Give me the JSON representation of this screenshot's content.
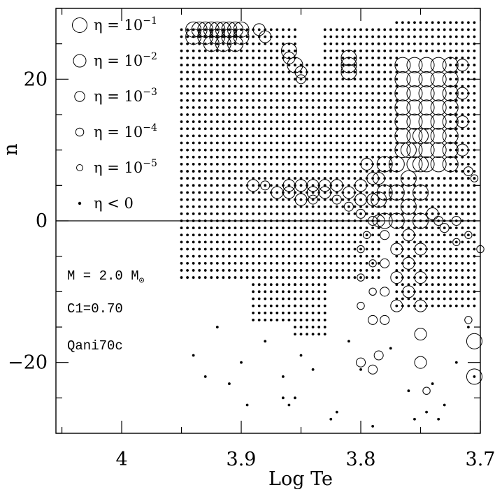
{
  "chart_data": {
    "type": "scatter",
    "xlabel": "Log Te",
    "ylabel": "n",
    "xlim": [
      4.055,
      3.7
    ],
    "ylim": [
      -30,
      30
    ],
    "x_ticks": [
      4.0,
      3.9,
      3.8,
      3.7
    ],
    "x_tick_labels": [
      "4",
      "3.9",
      "3.8",
      "3.7"
    ],
    "y_ticks": [
      -20,
      0,
      20
    ],
    "y_tick_labels": [
      "−20",
      "0",
      "20"
    ],
    "grid": false,
    "zero_line": true,
    "legend": {
      "placement": "top-left",
      "entries": [
        {
          "label_prefix": "η = 10",
          "exponent": "−1",
          "symbol": "open-circle",
          "size_rank": 5
        },
        {
          "label_prefix": "η = 10",
          "exponent": "−2",
          "symbol": "open-circle",
          "size_rank": 4
        },
        {
          "label_prefix": "η = 10",
          "exponent": "−3",
          "symbol": "open-circle",
          "size_rank": 3
        },
        {
          "label_prefix": "η = 10",
          "exponent": "−4",
          "symbol": "open-circle",
          "size_rank": 2
        },
        {
          "label_prefix": "η = 10",
          "exponent": "−5",
          "symbol": "open-circle",
          "size_rank": 1
        },
        {
          "label_prefix": "η < 0",
          "exponent": "",
          "symbol": "filled-dot",
          "size_rank": 0
        }
      ]
    },
    "annotations": [
      "M = 2.0 M",
      "C1=0.70",
      "Qani70c"
    ],
    "annotation_subscript": "⊙",
    "series": [
      {
        "name": "η < 0",
        "symbol": "filled-dot",
        "regions": [
          {
            "x_from": 3.95,
            "x_to": 3.895,
            "n_from": -8,
            "n_to": 27
          },
          {
            "x_from": 3.89,
            "x_to": 3.855,
            "n_from": -14,
            "n_to": 27
          },
          {
            "x_from": 3.855,
            "x_to": 3.83,
            "n_from": -16,
            "n_to": 22
          },
          {
            "x_from": 3.83,
            "x_to": 3.785,
            "n_from": -8,
            "n_to": 27
          },
          {
            "x_from": 3.785,
            "x_to": 3.77,
            "n_from": 1,
            "n_to": 27
          },
          {
            "x_from": 3.77,
            "x_to": 3.73,
            "n_from": 24,
            "n_to": 28
          },
          {
            "x_from": 3.77,
            "x_to": 3.705,
            "n_from": -12,
            "n_to": 6
          },
          {
            "x_from": 3.725,
            "x_to": 3.705,
            "n_from": 1,
            "n_to": 28
          }
        ],
        "scatter": [
          [
            3.94,
            -19
          ],
          [
            3.93,
            -22
          ],
          [
            3.92,
            -15
          ],
          [
            3.91,
            -23
          ],
          [
            3.9,
            -20
          ],
          [
            3.88,
            -17
          ],
          [
            3.865,
            -22
          ],
          [
            3.865,
            -25
          ],
          [
            3.86,
            -26
          ],
          [
            3.855,
            -25
          ],
          [
            3.85,
            -19
          ],
          [
            3.84,
            -21
          ],
          [
            3.825,
            -28
          ],
          [
            3.82,
            -27
          ],
          [
            3.81,
            -17
          ],
          [
            3.8,
            -21
          ],
          [
            3.79,
            -29
          ],
          [
            3.775,
            -18
          ],
          [
            3.76,
            -24
          ],
          [
            3.745,
            -27
          ],
          [
            3.74,
            -23
          ],
          [
            3.73,
            -26
          ],
          [
            3.72,
            -20
          ],
          [
            3.71,
            -15
          ],
          [
            3.705,
            -22
          ],
          [
            3.755,
            -28
          ],
          [
            3.735,
            -28
          ],
          [
            3.895,
            -26
          ]
        ]
      },
      {
        "name": "η > 0",
        "symbol": "open-circle",
        "points": [
          [
            3.94,
            27,
            -1
          ],
          [
            3.935,
            27,
            -1
          ],
          [
            3.93,
            27,
            -1
          ],
          [
            3.925,
            27,
            -1
          ],
          [
            3.92,
            27,
            -1
          ],
          [
            3.915,
            27,
            -1
          ],
          [
            3.91,
            27,
            -1
          ],
          [
            3.905,
            27,
            -1
          ],
          [
            3.9,
            27,
            -1
          ],
          [
            3.94,
            26,
            -1
          ],
          [
            3.93,
            26,
            -1
          ],
          [
            3.92,
            26,
            -1
          ],
          [
            3.91,
            26,
            -1
          ],
          [
            3.9,
            26,
            -1
          ],
          [
            3.925,
            25,
            -1
          ],
          [
            3.915,
            25,
            -1
          ],
          [
            3.905,
            25,
            -1
          ],
          [
            3.885,
            27,
            -2
          ],
          [
            3.88,
            26,
            -2
          ],
          [
            3.86,
            24,
            -1
          ],
          [
            3.86,
            23,
            -2
          ],
          [
            3.855,
            22,
            -1
          ],
          [
            3.85,
            21,
            -2
          ],
          [
            3.85,
            20,
            -3
          ],
          [
            3.81,
            23,
            -1
          ],
          [
            3.81,
            22,
            -1
          ],
          [
            3.81,
            21,
            -1
          ],
          [
            3.765,
            22,
            -1
          ],
          [
            3.765,
            20,
            -1
          ],
          [
            3.765,
            18,
            -1
          ],
          [
            3.765,
            16,
            -1
          ],
          [
            3.765,
            14,
            -1
          ],
          [
            3.765,
            12,
            -1
          ],
          [
            3.765,
            10,
            -1
          ],
          [
            3.755,
            22,
            -1
          ],
          [
            3.755,
            20,
            -1
          ],
          [
            3.755,
            18,
            -1
          ],
          [
            3.755,
            16,
            -1
          ],
          [
            3.755,
            14,
            -1
          ],
          [
            3.755,
            12,
            -1
          ],
          [
            3.755,
            10,
            -1
          ],
          [
            3.755,
            8,
            -1
          ],
          [
            3.745,
            22,
            -1
          ],
          [
            3.745,
            20,
            -1
          ],
          [
            3.745,
            18,
            -1
          ],
          [
            3.745,
            16,
            -1
          ],
          [
            3.745,
            14,
            -1
          ],
          [
            3.745,
            12,
            -1
          ],
          [
            3.745,
            10,
            -1
          ],
          [
            3.745,
            8,
            -1
          ],
          [
            3.735,
            22,
            -1
          ],
          [
            3.735,
            20,
            -1
          ],
          [
            3.735,
            18,
            -1
          ],
          [
            3.735,
            16,
            -1
          ],
          [
            3.735,
            14,
            -1
          ],
          [
            3.735,
            12,
            -1
          ],
          [
            3.735,
            10,
            -1
          ],
          [
            3.735,
            8,
            -1
          ],
          [
            3.725,
            22,
            -1
          ],
          [
            3.725,
            20,
            -1
          ],
          [
            3.725,
            18,
            -1
          ],
          [
            3.725,
            16,
            -1
          ],
          [
            3.725,
            14,
            -1
          ],
          [
            3.725,
            12,
            -1
          ],
          [
            3.725,
            10,
            -1
          ],
          [
            3.725,
            8,
            -1
          ],
          [
            3.715,
            22,
            -2
          ],
          [
            3.715,
            18,
            -2
          ],
          [
            3.715,
            14,
            -2
          ],
          [
            3.715,
            10,
            -2
          ],
          [
            3.71,
            7,
            -3
          ],
          [
            3.705,
            6,
            -4
          ],
          [
            3.89,
            5,
            -2
          ],
          [
            3.88,
            5,
            -3
          ],
          [
            3.87,
            4,
            -2
          ],
          [
            3.86,
            5,
            -2
          ],
          [
            3.86,
            4,
            -2
          ],
          [
            3.85,
            5,
            -2
          ],
          [
            3.85,
            3,
            -2
          ],
          [
            3.84,
            5,
            -2
          ],
          [
            3.84,
            4,
            -2
          ],
          [
            3.84,
            3,
            -3
          ],
          [
            3.83,
            5,
            -2
          ],
          [
            3.83,
            4,
            -2
          ],
          [
            3.82,
            5,
            -2
          ],
          [
            3.82,
            3,
            -3
          ],
          [
            3.81,
            4,
            -2
          ],
          [
            3.81,
            2,
            -3
          ],
          [
            3.8,
            5,
            -2
          ],
          [
            3.8,
            3,
            -2
          ],
          [
            3.8,
            1,
            -3
          ],
          [
            3.795,
            8,
            -2
          ],
          [
            3.79,
            6,
            -2
          ],
          [
            3.79,
            3,
            -2
          ],
          [
            3.79,
            0,
            -3
          ],
          [
            3.785,
            6,
            -2
          ],
          [
            3.785,
            3,
            -1
          ],
          [
            3.785,
            0,
            -2
          ],
          [
            3.78,
            8,
            -1
          ],
          [
            3.78,
            4,
            -1
          ],
          [
            3.78,
            0,
            -1
          ],
          [
            3.77,
            8,
            -1
          ],
          [
            3.77,
            4,
            -1
          ],
          [
            3.77,
            0,
            -1
          ],
          [
            3.77,
            -4,
            -2
          ],
          [
            3.77,
            -8,
            -2
          ],
          [
            3.77,
            -12,
            -2
          ],
          [
            3.76,
            10,
            -1
          ],
          [
            3.76,
            6,
            -1
          ],
          [
            3.76,
            2,
            -1
          ],
          [
            3.76,
            -2,
            -2
          ],
          [
            3.76,
            -6,
            -2
          ],
          [
            3.76,
            -10,
            -2
          ],
          [
            3.75,
            12,
            -1
          ],
          [
            3.75,
            8,
            -1
          ],
          [
            3.75,
            4,
            -1
          ],
          [
            3.75,
            0,
            -1
          ],
          [
            3.75,
            -4,
            -2
          ],
          [
            3.75,
            -8,
            -2
          ],
          [
            3.75,
            -12,
            -2
          ],
          [
            3.75,
            -16,
            -2
          ],
          [
            3.75,
            -20,
            -2
          ],
          [
            3.74,
            1,
            -2
          ],
          [
            3.735,
            0,
            -3
          ],
          [
            3.73,
            -1,
            -3
          ],
          [
            3.72,
            0,
            -3
          ],
          [
            3.72,
            -3,
            -4
          ],
          [
            3.71,
            -2,
            -4
          ],
          [
            3.7,
            -4,
            -4
          ],
          [
            3.745,
            -24,
            -4
          ],
          [
            3.71,
            -14,
            -4
          ],
          [
            3.705,
            -17,
            -1
          ],
          [
            3.705,
            -22,
            -1
          ],
          [
            3.8,
            -4,
            -4
          ],
          [
            3.8,
            -8,
            -4
          ],
          [
            3.8,
            -12,
            -4
          ],
          [
            3.795,
            -2,
            -4
          ],
          [
            3.79,
            -6,
            -4
          ],
          [
            3.79,
            -10,
            -4
          ],
          [
            3.79,
            -14,
            -3
          ],
          [
            3.78,
            -2,
            -3
          ],
          [
            3.78,
            -6,
            -3
          ],
          [
            3.78,
            -10,
            -3
          ],
          [
            3.78,
            -14,
            -3
          ],
          [
            3.785,
            -19,
            -3
          ],
          [
            3.79,
            -21,
            -3
          ],
          [
            3.8,
            -20,
            -3
          ]
        ]
      }
    ]
  }
}
